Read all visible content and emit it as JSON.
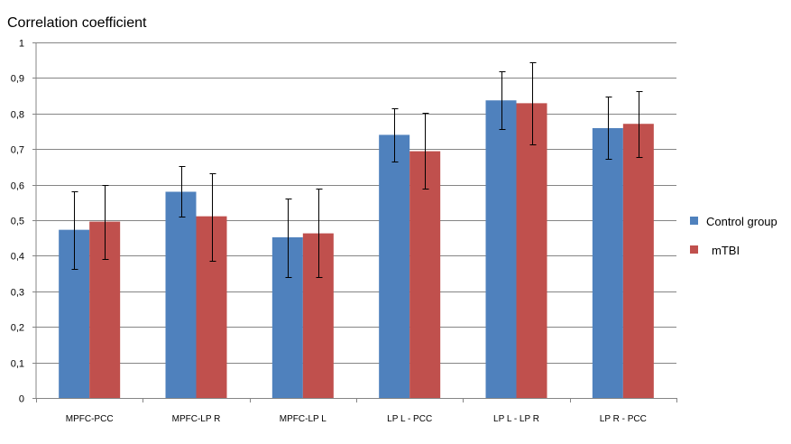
{
  "chart_data": {
    "type": "bar",
    "title": "Correlation coefficient",
    "xlabel": "",
    "ylabel": "",
    "ylim": [
      0,
      1
    ],
    "ytick_step": 0.1,
    "yticks": [
      "0",
      "0,1",
      "0,2",
      "0,3",
      "0,4",
      "0,5",
      "0,6",
      "0,7",
      "0,8",
      "0,9",
      "1"
    ],
    "grid": true,
    "legend_position": "right",
    "categories": [
      "MPFC-PCC",
      "MPFC-LP R",
      "MPFC-LP L",
      "LP L - PCC",
      "LP L - LP R",
      "LP R - PCC"
    ],
    "series": [
      {
        "name": "Control group",
        "color": "#4f81bd",
        "values": [
          0.473,
          0.58,
          0.452,
          0.74,
          0.837,
          0.759
        ],
        "error_low": [
          0.362,
          0.509,
          0.341,
          0.666,
          0.756,
          0.672
        ],
        "error_high": [
          0.582,
          0.652,
          0.562,
          0.814,
          0.919,
          0.847
        ]
      },
      {
        "name": "mTBI",
        "color": "#c0504d",
        "values": [
          0.496,
          0.511,
          0.463,
          0.694,
          0.829,
          0.771
        ],
        "error_low": [
          0.392,
          0.387,
          0.339,
          0.588,
          0.714,
          0.677
        ],
        "error_high": [
          0.598,
          0.633,
          0.588,
          0.802,
          0.944,
          0.864
        ]
      }
    ]
  }
}
